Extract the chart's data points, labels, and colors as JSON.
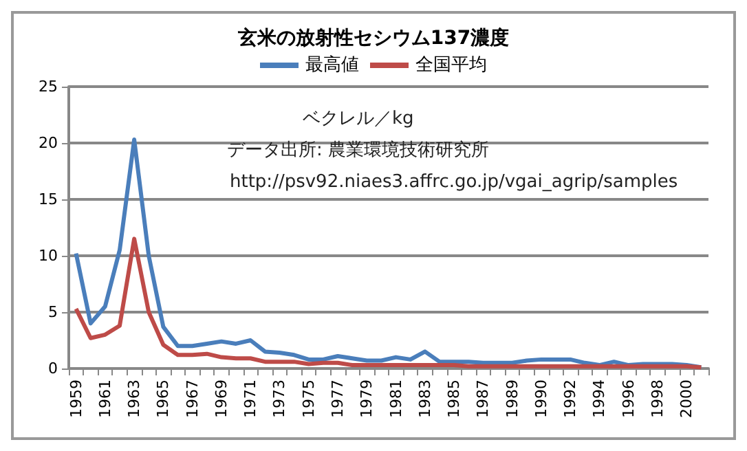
{
  "chart_data": {
    "type": "line",
    "title": "玄米の放射性セシウム137濃度",
    "categories": [
      "1959",
      null,
      "1961",
      null,
      "1963",
      null,
      "1965",
      null,
      "1967",
      null,
      "1969",
      null,
      "1971",
      null,
      "1973",
      null,
      "1975",
      null,
      "1977",
      null,
      "1979",
      null,
      "1981",
      null,
      "1983",
      null,
      "1985",
      null,
      "1987",
      null,
      "1989",
      null,
      "1990",
      null,
      "1992",
      null,
      "1994",
      null,
      "1996",
      null,
      "1998",
      null,
      "2000",
      null
    ],
    "series": [
      {
        "name": "最高値",
        "color": "#4a7ebb",
        "values": [
          10.2,
          4.0,
          5.5,
          10.5,
          20.3,
          10.0,
          3.7,
          2.0,
          2.0,
          2.2,
          2.4,
          2.2,
          2.5,
          1.5,
          1.4,
          1.2,
          0.8,
          0.8,
          1.1,
          0.9,
          0.7,
          0.7,
          1.0,
          0.8,
          1.5,
          0.6,
          0.6,
          0.6,
          0.5,
          0.5,
          0.5,
          0.7,
          0.8,
          0.8,
          0.8,
          0.5,
          0.3,
          0.6,
          0.3,
          0.4,
          0.4,
          0.4,
          0.3,
          0.1
        ]
      },
      {
        "name": "全国平均",
        "color": "#be4b48",
        "values": [
          5.3,
          2.7,
          3.0,
          3.8,
          11.5,
          5.0,
          2.1,
          1.2,
          1.2,
          1.3,
          1.0,
          0.9,
          0.9,
          0.6,
          0.6,
          0.6,
          0.4,
          0.5,
          0.5,
          0.3,
          0.3,
          0.3,
          0.3,
          0.3,
          0.3,
          0.3,
          0.3,
          0.2,
          0.2,
          0.2,
          0.2,
          0.2,
          0.2,
          0.2,
          0.2,
          0.2,
          0.2,
          0.2,
          0.2,
          0.2,
          0.2,
          0.2,
          0.2,
          0.1
        ]
      }
    ],
    "ylim": [
      0,
      25
    ],
    "yticks": [
      0,
      5,
      10,
      15,
      20,
      25
    ],
    "grid": "y",
    "legend": "top",
    "marker": "none",
    "line_style": "solid",
    "annotations": [
      "ベクレル／kg",
      "データ出所: 農業環境技術研究所",
      "http://psv92.niaes3.affrc.go.jp/vgai_agrip/samples"
    ]
  }
}
